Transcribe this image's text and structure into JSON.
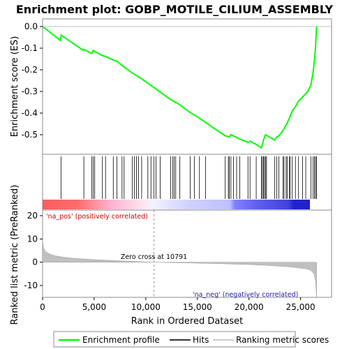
{
  "chart_data": [
    {
      "type": "line",
      "title": "Enrichment plot: GOBP_MOTILE_CILIUM_ASSEMBLY",
      "ylabel": "Enrichment score (ES)",
      "ylim": [
        -0.6,
        0.0
      ],
      "y_ticks": [
        "0.0",
        "-0.1",
        "-0.2",
        "-0.3",
        "-0.4",
        "-0.5"
      ],
      "series": [
        {
          "name": "Enrichment profile",
          "color": "#00ff00",
          "x": [
            0,
            1750,
            1800,
            3950,
            4000,
            4750,
            4900,
            5050,
            5800,
            6100,
            6850,
            7200,
            7700,
            8700,
            9300,
            10200,
            10800,
            11400,
            12400,
            12900,
            13300,
            13800,
            14300,
            15200,
            15700,
            16600,
            17700,
            18100,
            18250,
            18500,
            19100,
            19900,
            20100,
            20700,
            21200,
            21300,
            21400,
            21600,
            22500,
            22700,
            22900,
            23300,
            23600,
            23900,
            24200,
            24500,
            24800,
            25200,
            25500,
            25700,
            26000,
            26200,
            26350,
            26450,
            26550
          ],
          "y": [
            0.0,
            -0.065,
            -0.04,
            -0.11,
            -0.105,
            -0.125,
            -0.11,
            -0.115,
            -0.135,
            -0.138,
            -0.155,
            -0.16,
            -0.18,
            -0.215,
            -0.232,
            -0.262,
            -0.282,
            -0.303,
            -0.337,
            -0.35,
            -0.362,
            -0.38,
            -0.397,
            -0.423,
            -0.44,
            -0.47,
            -0.505,
            -0.51,
            -0.5,
            -0.505,
            -0.52,
            -0.535,
            -0.53,
            -0.545,
            -0.56,
            -0.545,
            -0.525,
            -0.5,
            -0.525,
            -0.51,
            -0.505,
            -0.48,
            -0.455,
            -0.425,
            -0.39,
            -0.37,
            -0.345,
            -0.325,
            -0.31,
            -0.3,
            -0.27,
            -0.215,
            -0.155,
            -0.09,
            0.0
          ]
        }
      ]
    },
    {
      "type": "hits",
      "series_name": "Hits",
      "hit_ranks": [
        1800,
        4000,
        4750,
        4900,
        5050,
        5800,
        6100,
        6850,
        7200,
        7700,
        7900,
        8700,
        8900,
        9100,
        9300,
        9600,
        10200,
        10500,
        10800,
        11000,
        11400,
        12400,
        12600,
        12750,
        12900,
        13300,
        14300,
        14700,
        15200,
        15800,
        17700,
        18000,
        18100,
        18250,
        18500,
        18800,
        19100,
        19900,
        20100,
        20700,
        21200,
        21300,
        21400,
        21500,
        21600,
        21700,
        22500,
        22700,
        22900,
        23300,
        23400,
        23600,
        23700,
        23900,
        24000,
        24200,
        24500,
        24800,
        25200,
        25500,
        26000,
        26200,
        26350,
        26450,
        26550
      ],
      "color_bar": {
        "pos_color": "#ff5c5c",
        "neg_color": "#2222dd"
      }
    },
    {
      "type": "area",
      "ylabel": "Ranked list metric (PreRanked)",
      "xlabel": "Rank in Ordered Dataset",
      "xlim": [
        0,
        28000
      ],
      "ylim": [
        -15,
        23
      ],
      "x_ticks": [
        "0",
        "5,000",
        "10,000",
        "15,000",
        "20,000",
        "25,000"
      ],
      "y_ticks": [
        "20",
        "10",
        "0",
        "-10"
      ],
      "fill_color": "#c0c0c0",
      "x": [
        0,
        100,
        300,
        700,
        1200,
        2000,
        3000,
        5000,
        8000,
        10791,
        14000,
        17000,
        20000,
        22000,
        24000,
        25500,
        26000,
        26300,
        26450,
        26550
      ],
      "y": [
        9,
        6,
        4.5,
        3.5,
        2.8,
        2.2,
        1.7,
        1.1,
        0.5,
        0.0,
        -0.3,
        -0.6,
        -1.0,
        -1.4,
        -2.0,
        -2.8,
        -3.5,
        -5.0,
        -8.0,
        -15.0
      ],
      "annotations": {
        "zero_cross": "Zero cross at 10791",
        "pos_label": "'na_pos' (positively correlated)",
        "neg_label": "'na_neg' (negatively correlated)"
      }
    }
  ],
  "legend": {
    "items": [
      {
        "label": "Enrichment profile",
        "color": "#00ff00"
      },
      {
        "label": "Hits",
        "color": "#333333"
      },
      {
        "label": "Ranking metric scores",
        "color": "#cccccc"
      }
    ]
  }
}
